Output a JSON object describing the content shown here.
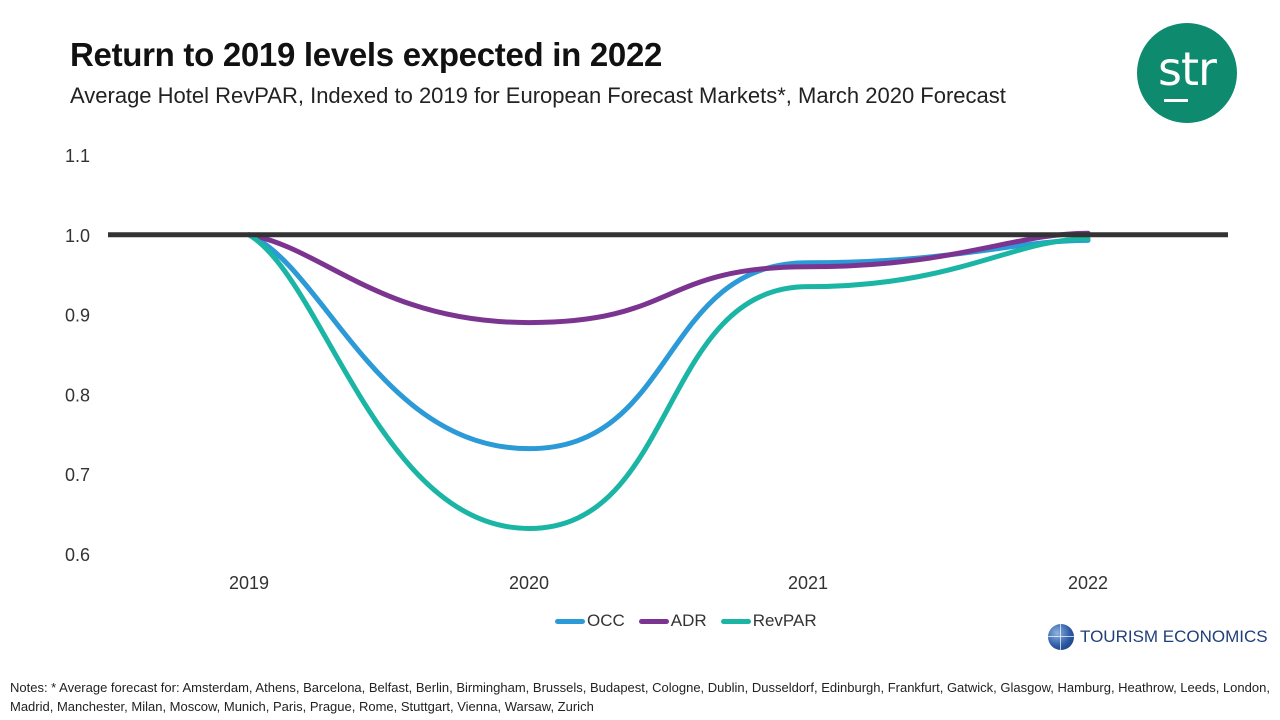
{
  "header": {
    "title": "Return to 2019 levels expected in 2022",
    "subtitle": "Average Hotel RevPAR, Indexed to 2019 for European Forecast Markets*, March 2020 Forecast"
  },
  "logo": {
    "text": "str",
    "color": "#0e8a6f"
  },
  "brand": {
    "name": "TOURISM ECONOMICS",
    "icon": "globe-icon"
  },
  "notes": "Notes: * Average forecast for: Amsterdam, Athens, Barcelona, Belfast, Berlin, Birmingham, Brussels, Budapest, Cologne, Dublin, Dusseldorf, Edinburgh, Frankfurt, Gatwick, Glasgow, Hamburg, Heathrow, Leeds, London, Madrid, Manchester, Milan, Moscow, Munich, Paris, Prague, Rome, Stuttgart, Vienna, Warsaw, Zurich",
  "chart_data": {
    "type": "line",
    "title": "Return to 2019 levels expected in 2022",
    "subtitle": "Average Hotel RevPAR, Indexed to 2019 for European Forecast Markets*, March 2020 Forecast",
    "x": [
      "2019",
      "2020",
      "2021",
      "2022"
    ],
    "ylim": [
      0.6,
      1.1
    ],
    "yticks": [
      "0.6",
      "0.7",
      "0.8",
      "0.9",
      "1.0",
      "1.1"
    ],
    "reference_line": {
      "value": 1.0,
      "color": "#333333"
    },
    "smooth": true,
    "grid": false,
    "legend": "bottom-center",
    "series": [
      {
        "name": "OCC",
        "color": "#2b9ad6",
        "values": [
          1.0,
          0.732,
          0.965,
          0.993
        ]
      },
      {
        "name": "ADR",
        "color": "#7b3590",
        "values": [
          1.0,
          0.89,
          0.96,
          1.002
        ]
      },
      {
        "name": "RevPAR",
        "color": "#1ab5a5",
        "values": [
          1.0,
          0.632,
          0.935,
          0.995
        ]
      }
    ]
  }
}
